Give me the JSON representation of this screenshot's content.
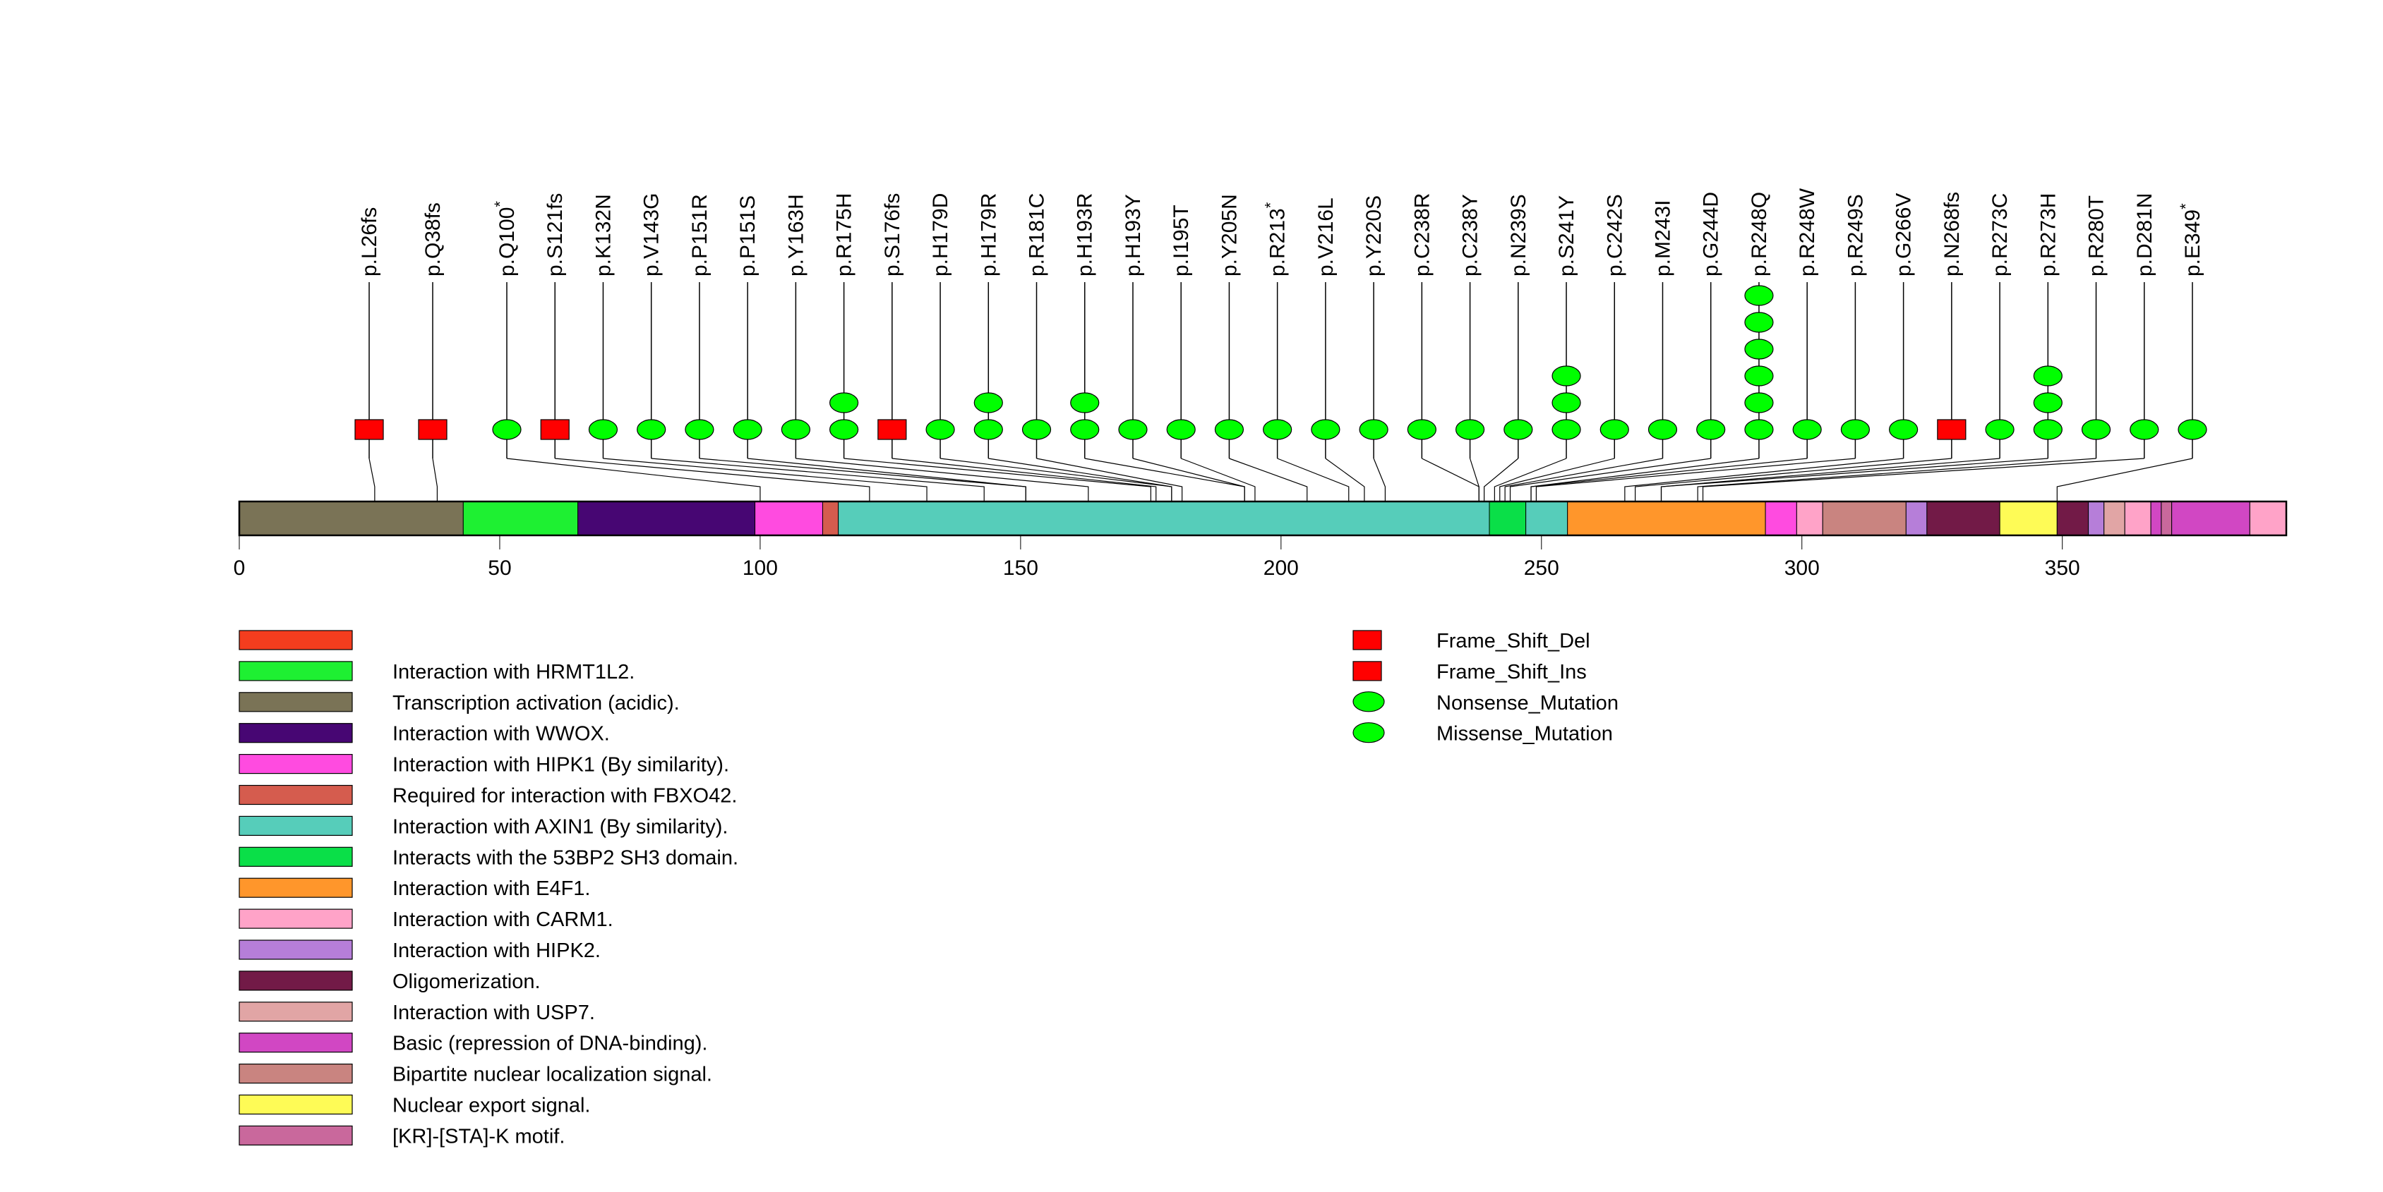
{
  "chart_data": {
    "type": "lollipop",
    "title": "",
    "protein_length": 393,
    "xlim": [
      0,
      393
    ],
    "x_ticks": [
      0,
      50,
      100,
      150,
      200,
      250,
      300,
      350
    ],
    "x_tick_labels": [
      "0",
      "50",
      "100",
      "150",
      "200",
      "250",
      "300",
      "350"
    ],
    "domains": [
      {
        "name": "Transcription activation (acidic).",
        "start": 0,
        "end": 43,
        "color": "#7A7356"
      },
      {
        "name": "Interaction with HRMT1L2.",
        "start": 43,
        "end": 65,
        "color": "#1EF032"
      },
      {
        "name": "Interaction with WWOX.",
        "start": 65,
        "end": 99,
        "color": "#470673"
      },
      {
        "name": "Interaction with HIPK1 (By similarity).",
        "start": 99,
        "end": 112,
        "color": "#FF4BE0"
      },
      {
        "name": "Required for interaction with FBXO42.",
        "start": 112,
        "end": 115,
        "color": "#D55C4E"
      },
      {
        "name": "Interaction with AXIN1 (By similarity).",
        "start": 115,
        "end": 240,
        "color": "#56CDBA"
      },
      {
        "name": "Interacts with the 53BP2 SH3 domain.",
        "start": 240,
        "end": 247,
        "color": "#0ADF48"
      },
      {
        "name": "Interaction with AXIN1 (By similarity).",
        "start": 247,
        "end": 255,
        "color": "#56CDBA"
      },
      {
        "name": "Interaction with E4F1.",
        "start": 255,
        "end": 293,
        "color": "#FF962B"
      },
      {
        "name": "Interaction with HIPK1 (By similarity).",
        "start": 293,
        "end": 299,
        "color": "#FF4BE0"
      },
      {
        "name": "Interaction with CARM1.",
        "start": 299,
        "end": 304,
        "color": "#FFA3C8"
      },
      {
        "name": "Bipartite nuclear localization signal.",
        "start": 304,
        "end": 320,
        "color": "#C98480"
      },
      {
        "name": "Interaction with HIPK2.",
        "start": 320,
        "end": 324,
        "color": "#B67ED9"
      },
      {
        "name": "Oligomerization.",
        "start": 324,
        "end": 338,
        "color": "#721A47"
      },
      {
        "name": "Nuclear export signal.",
        "start": 338,
        "end": 349,
        "color": "#FEFB56"
      },
      {
        "name": "Oligomerization.",
        "start": 349,
        "end": 355,
        "color": "#721A47"
      },
      {
        "name": "Interaction with HIPK2.",
        "start": 355,
        "end": 358,
        "color": "#B67ED9"
      },
      {
        "name": "Interaction with USP7.",
        "start": 358,
        "end": 362,
        "color": "#E1A5A5"
      },
      {
        "name": "Interaction with CARM1.",
        "start": 362,
        "end": 367,
        "color": "#FFA3C8"
      },
      {
        "name": "Basic (repression of DNA-binding).",
        "start": 367,
        "end": 369,
        "color": "#D147C3"
      },
      {
        "name": "[KR]-[STA]-K motif.",
        "start": 369,
        "end": 371,
        "color": "#C9689C"
      },
      {
        "name": "Basic (repression of DNA-binding).",
        "start": 371,
        "end": 386,
        "color": "#D147C3"
      },
      {
        "name": "Interaction with CARM1.",
        "start": 386,
        "end": 393,
        "color": "#FFA3C8"
      }
    ],
    "mutations": [
      {
        "label": "p.L26fs",
        "pos": 26,
        "count": 1,
        "shape": "square"
      },
      {
        "label": "p.Q38fs",
        "pos": 38,
        "count": 1,
        "shape": "square"
      },
      {
        "label": "p.Q100",
        "star": true,
        "pos": 100,
        "count": 1,
        "shape": "ellipse"
      },
      {
        "label": "p.S121fs",
        "pos": 121,
        "count": 1,
        "shape": "square"
      },
      {
        "label": "p.K132N",
        "pos": 132,
        "count": 1,
        "shape": "ellipse"
      },
      {
        "label": "p.V143G",
        "pos": 143,
        "count": 1,
        "shape": "ellipse"
      },
      {
        "label": "p.P151R",
        "pos": 151,
        "count": 1,
        "shape": "ellipse"
      },
      {
        "label": "p.P151S",
        "pos": 151,
        "count": 1,
        "shape": "ellipse"
      },
      {
        "label": "p.Y163H",
        "pos": 163,
        "count": 1,
        "shape": "ellipse"
      },
      {
        "label": "p.R175H",
        "pos": 175,
        "count": 2,
        "shape": "ellipse"
      },
      {
        "label": "p.S176fs",
        "pos": 176,
        "count": 1,
        "shape": "square"
      },
      {
        "label": "p.H179D",
        "pos": 179,
        "count": 1,
        "shape": "ellipse"
      },
      {
        "label": "p.H179R",
        "pos": 179,
        "count": 2,
        "shape": "ellipse"
      },
      {
        "label": "p.R181C",
        "pos": 181,
        "count": 1,
        "shape": "ellipse"
      },
      {
        "label": "p.H193R",
        "pos": 193,
        "count": 2,
        "shape": "ellipse"
      },
      {
        "label": "p.H193Y",
        "pos": 193,
        "count": 1,
        "shape": "ellipse"
      },
      {
        "label": "p.I195T",
        "pos": 195,
        "count": 1,
        "shape": "ellipse"
      },
      {
        "label": "p.Y205N",
        "pos": 205,
        "count": 1,
        "shape": "ellipse"
      },
      {
        "label": "p.R213",
        "star": true,
        "pos": 213,
        "count": 1,
        "shape": "ellipse"
      },
      {
        "label": "p.V216L",
        "pos": 216,
        "count": 1,
        "shape": "ellipse"
      },
      {
        "label": "p.Y220S",
        "pos": 220,
        "count": 1,
        "shape": "ellipse"
      },
      {
        "label": "p.C238R",
        "pos": 238,
        "count": 1,
        "shape": "ellipse"
      },
      {
        "label": "p.C238Y",
        "pos": 238,
        "count": 1,
        "shape": "ellipse"
      },
      {
        "label": "p.N239S",
        "pos": 239,
        "count": 1,
        "shape": "ellipse"
      },
      {
        "label": "p.S241Y",
        "pos": 241,
        "count": 3,
        "shape": "ellipse"
      },
      {
        "label": "p.C242S",
        "pos": 242,
        "count": 1,
        "shape": "ellipse"
      },
      {
        "label": "p.M243I",
        "pos": 243,
        "count": 1,
        "shape": "ellipse"
      },
      {
        "label": "p.G244D",
        "pos": 244,
        "count": 1,
        "shape": "ellipse"
      },
      {
        "label": "p.R248Q",
        "pos": 248,
        "count": 6,
        "shape": "ellipse"
      },
      {
        "label": "p.R248W",
        "pos": 248,
        "count": 1,
        "shape": "ellipse"
      },
      {
        "label": "p.R249S",
        "pos": 249,
        "count": 1,
        "shape": "ellipse"
      },
      {
        "label": "p.G266V",
        "pos": 266,
        "count": 1,
        "shape": "ellipse"
      },
      {
        "label": "p.N268fs",
        "pos": 268,
        "count": 1,
        "shape": "square"
      },
      {
        "label": "p.R273C",
        "pos": 273,
        "count": 1,
        "shape": "ellipse"
      },
      {
        "label": "p.R273H",
        "pos": 273,
        "count": 3,
        "shape": "ellipse"
      },
      {
        "label": "p.R280T",
        "pos": 280,
        "count": 1,
        "shape": "ellipse"
      },
      {
        "label": "p.D281N",
        "pos": 281,
        "count": 1,
        "shape": "ellipse"
      },
      {
        "label": "p.E349",
        "star": true,
        "pos": 349,
        "count": 1,
        "shape": "ellipse"
      }
    ],
    "domain_legend": [
      {
        "label": "",
        "color": "#F43D1E"
      },
      {
        "label": "Interaction with HRMT1L2.",
        "color": "#1EF032"
      },
      {
        "label": "Transcription activation (acidic).",
        "color": "#7A7356"
      },
      {
        "label": "Interaction with WWOX.",
        "color": "#470673"
      },
      {
        "label": "Interaction with HIPK1 (By similarity).",
        "color": "#FF4BE0"
      },
      {
        "label": "Required for interaction with FBXO42.",
        "color": "#D55C4E"
      },
      {
        "label": "Interaction with AXIN1 (By similarity).",
        "color": "#56CDBA"
      },
      {
        "label": "Interacts with the 53BP2 SH3 domain.",
        "color": "#0ADF48"
      },
      {
        "label": "Interaction with E4F1.",
        "color": "#FF962B"
      },
      {
        "label": "Interaction with CARM1.",
        "color": "#FFA3C8"
      },
      {
        "label": "Interaction with HIPK2.",
        "color": "#B67ED9"
      },
      {
        "label": "Oligomerization.",
        "color": "#721A47"
      },
      {
        "label": "Interaction with USP7.",
        "color": "#E1A5A5"
      },
      {
        "label": "Basic (repression of DNA-binding).",
        "color": "#D147C3"
      },
      {
        "label": "Bipartite nuclear localization signal.",
        "color": "#C98480"
      },
      {
        "label": "Nuclear export signal.",
        "color": "#FEFB56"
      },
      {
        "label": "[KR]-[STA]-K motif.",
        "color": "#C9689C"
      }
    ],
    "mutation_type_legend": [
      {
        "label": "Frame_Shift_Del",
        "shape": "square",
        "color": "#FF0000"
      },
      {
        "label": "Frame_Shift_Ins",
        "shape": "square",
        "color": "#FF0000"
      },
      {
        "label": "Nonsense_Mutation",
        "shape": "ellipse",
        "color": "#00FF00"
      },
      {
        "label": "Missense_Mutation",
        "shape": "ellipse",
        "color": "#00FF00"
      }
    ],
    "star_glyph": "*"
  }
}
